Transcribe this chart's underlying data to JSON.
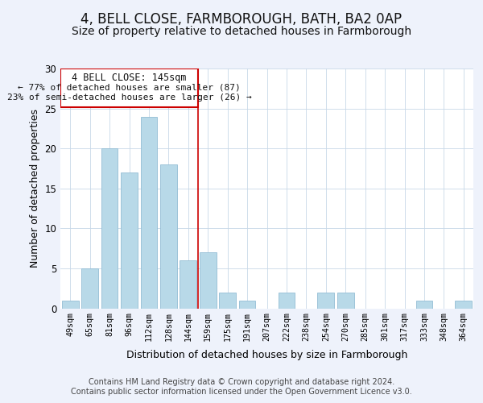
{
  "title": "4, BELL CLOSE, FARMBOROUGH, BATH, BA2 0AP",
  "subtitle": "Size of property relative to detached houses in Farmborough",
  "xlabel": "Distribution of detached houses by size in Farmborough",
  "ylabel": "Number of detached properties",
  "categories": [
    "49sqm",
    "65sqm",
    "81sqm",
    "96sqm",
    "112sqm",
    "128sqm",
    "144sqm",
    "159sqm",
    "175sqm",
    "191sqm",
    "207sqm",
    "222sqm",
    "238sqm",
    "254sqm",
    "270sqm",
    "285sqm",
    "301sqm",
    "317sqm",
    "333sqm",
    "348sqm",
    "364sqm"
  ],
  "values": [
    1,
    5,
    20,
    17,
    24,
    18,
    6,
    7,
    2,
    1,
    0,
    2,
    0,
    2,
    2,
    0,
    0,
    0,
    1,
    0,
    1
  ],
  "bar_color": "#b8d9e8",
  "bar_edge_color": "#93bdd4",
  "highlight_index": 6,
  "highlight_color": "#cc0000",
  "ylim": [
    0,
    30
  ],
  "yticks": [
    0,
    5,
    10,
    15,
    20,
    25,
    30
  ],
  "annotation_title": "4 BELL CLOSE: 145sqm",
  "annotation_line1": "← 77% of detached houses are smaller (87)",
  "annotation_line2": "23% of semi-detached houses are larger (26) →",
  "footer1": "Contains HM Land Registry data © Crown copyright and database right 2024.",
  "footer2": "Contains public sector information licensed under the Open Government Licence v3.0.",
  "background_color": "#eef2fb",
  "plot_background": "#ffffff",
  "title_fontsize": 12,
  "subtitle_fontsize": 10,
  "footer_fontsize": 7
}
